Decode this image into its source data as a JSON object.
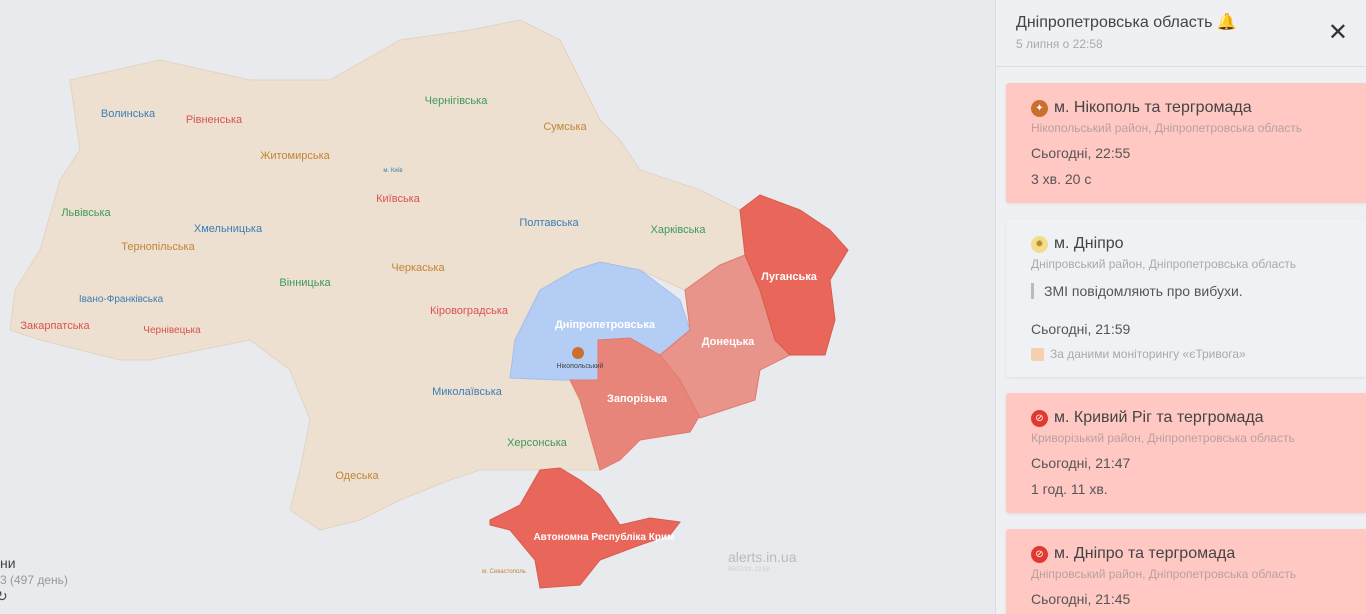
{
  "colors": {
    "land": "#ede0d0",
    "alert": "#e8675a",
    "alert_partial": "#e8857a",
    "alert_light": "#e8948a",
    "selected": "#b3cdf5",
    "card_alert": "#ffc8c3"
  },
  "map": {
    "regions": {
      "volyn": "Волинська",
      "rivne": "Рівненська",
      "zhytomyr": "Житомирська",
      "chernihiv": "Чернігівська",
      "sumy": "Сумська",
      "kyiv_city": "м. Київ",
      "kyiv": "Київська",
      "lviv": "Львівська",
      "khmelnytskyi": "Хмельницька",
      "ternopil": "Тернопільська",
      "poltava": "Полтавська",
      "kharkiv": "Харківська",
      "luhansk": "Луганська",
      "ivano": "Івано-Франківська",
      "vinnytsia": "Вінницька",
      "cherkasy": "Черкаська",
      "zakarpattia": "Закарпатська",
      "chernivtsi": "Чернівецька",
      "kirovohrad": "Кіровоградська",
      "dnipro": "Дніпропетровська",
      "donetsk": "Донецька",
      "nikopol": "Нікопольський",
      "mykolaiv": "Миколаївська",
      "zaporizhzhia": "Запорізька",
      "kherson": "Херсонська",
      "odesa": "Одеська",
      "crimea": "Автономна Республіка Крим",
      "sevastopol": "м. Севастополь"
    },
    "watermark": "alerts.in.ua",
    "watermark_date": "05/07/23, 22:58"
  },
  "bottom_left": {
    "line1": "ни",
    "line2": "3 (497 день)"
  },
  "panel": {
    "title": "Дніпропетровська область",
    "date": "5 липня о 22:58",
    "cards": [
      {
        "type": "alert",
        "icon": "artillery-icon",
        "title": "м. Нікополь та тергромада",
        "sub": "Нікопольський район, Дніпропетровська область",
        "time": "Сьогодні, 22:55",
        "duration": "3 хв. 20 с"
      },
      {
        "type": "info",
        "icon": "explosion-icon",
        "title": "м. Дніпро",
        "sub": "Дніпровський район, Дніпропетровська область",
        "quote": "ЗМІ повідомляють про вибухи.",
        "time": "Сьогодні, 21:59",
        "source": "За даними моніторингу «єТривога»"
      },
      {
        "type": "alert",
        "icon": "missile-icon",
        "title": "м. Кривий Ріг та тергромада",
        "sub": "Криворізький район, Дніпропетровська область",
        "time": "Сьогодні, 21:47",
        "duration": "1 год. 11 хв."
      },
      {
        "type": "alert",
        "icon": "missile-icon",
        "title": "м. Дніпро та тергромада",
        "sub": "Дніпровський район, Дніпропетровська область",
        "time": "Сьогодні, 21:45"
      }
    ]
  }
}
